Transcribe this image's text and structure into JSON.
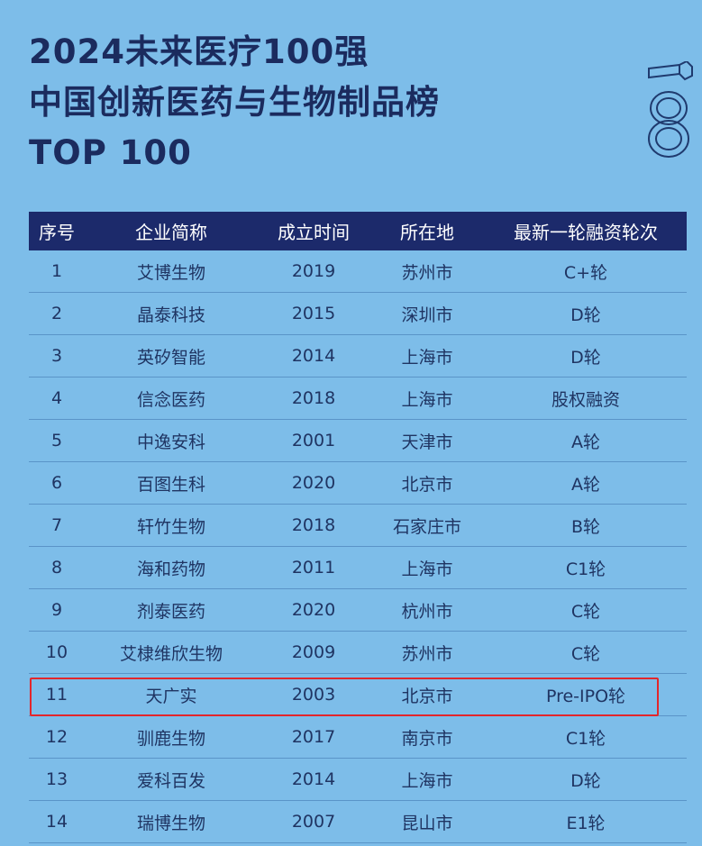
{
  "title": {
    "line1": "2024未来医疗100强",
    "line2": "中国创新医药与生物制品榜",
    "line3": "TOP 100"
  },
  "colors": {
    "background": "#7dbde9",
    "header": "#1c2a6b",
    "highlight": "#e3262b"
  },
  "logo": "vb100-logo",
  "table": {
    "headers": [
      "序号",
      "企业简称",
      "成立时间",
      "所在地",
      "最新一轮融资轮次"
    ],
    "rows": [
      [
        "1",
        "艾博生物",
        "2019",
        "苏州市",
        "C+轮"
      ],
      [
        "2",
        "晶泰科技",
        "2015",
        "深圳市",
        "D轮"
      ],
      [
        "3",
        "英矽智能",
        "2014",
        "上海市",
        "D轮"
      ],
      [
        "4",
        "信念医药",
        "2018",
        "上海市",
        "股权融资"
      ],
      [
        "5",
        "中逸安科",
        "2001",
        "天津市",
        "A轮"
      ],
      [
        "6",
        "百图生科",
        "2020",
        "北京市",
        "A轮"
      ],
      [
        "7",
        "轩竹生物",
        "2018",
        "石家庄市",
        "B轮"
      ],
      [
        "8",
        "海和药物",
        "2011",
        "上海市",
        "C1轮"
      ],
      [
        "9",
        "剂泰医药",
        "2020",
        "杭州市",
        "C轮"
      ],
      [
        "10",
        "艾棣维欣生物",
        "2009",
        "苏州市",
        "C轮"
      ],
      [
        "11",
        "天广实",
        "2003",
        "北京市",
        "Pre-IPO轮"
      ],
      [
        "12",
        "驯鹿生物",
        "2017",
        "南京市",
        "C1轮"
      ],
      [
        "13",
        "爱科百发",
        "2014",
        "上海市",
        "D轮"
      ],
      [
        "14",
        "瑞博生物",
        "2007",
        "昆山市",
        "E1轮"
      ]
    ],
    "highlighted_row": "11"
  }
}
